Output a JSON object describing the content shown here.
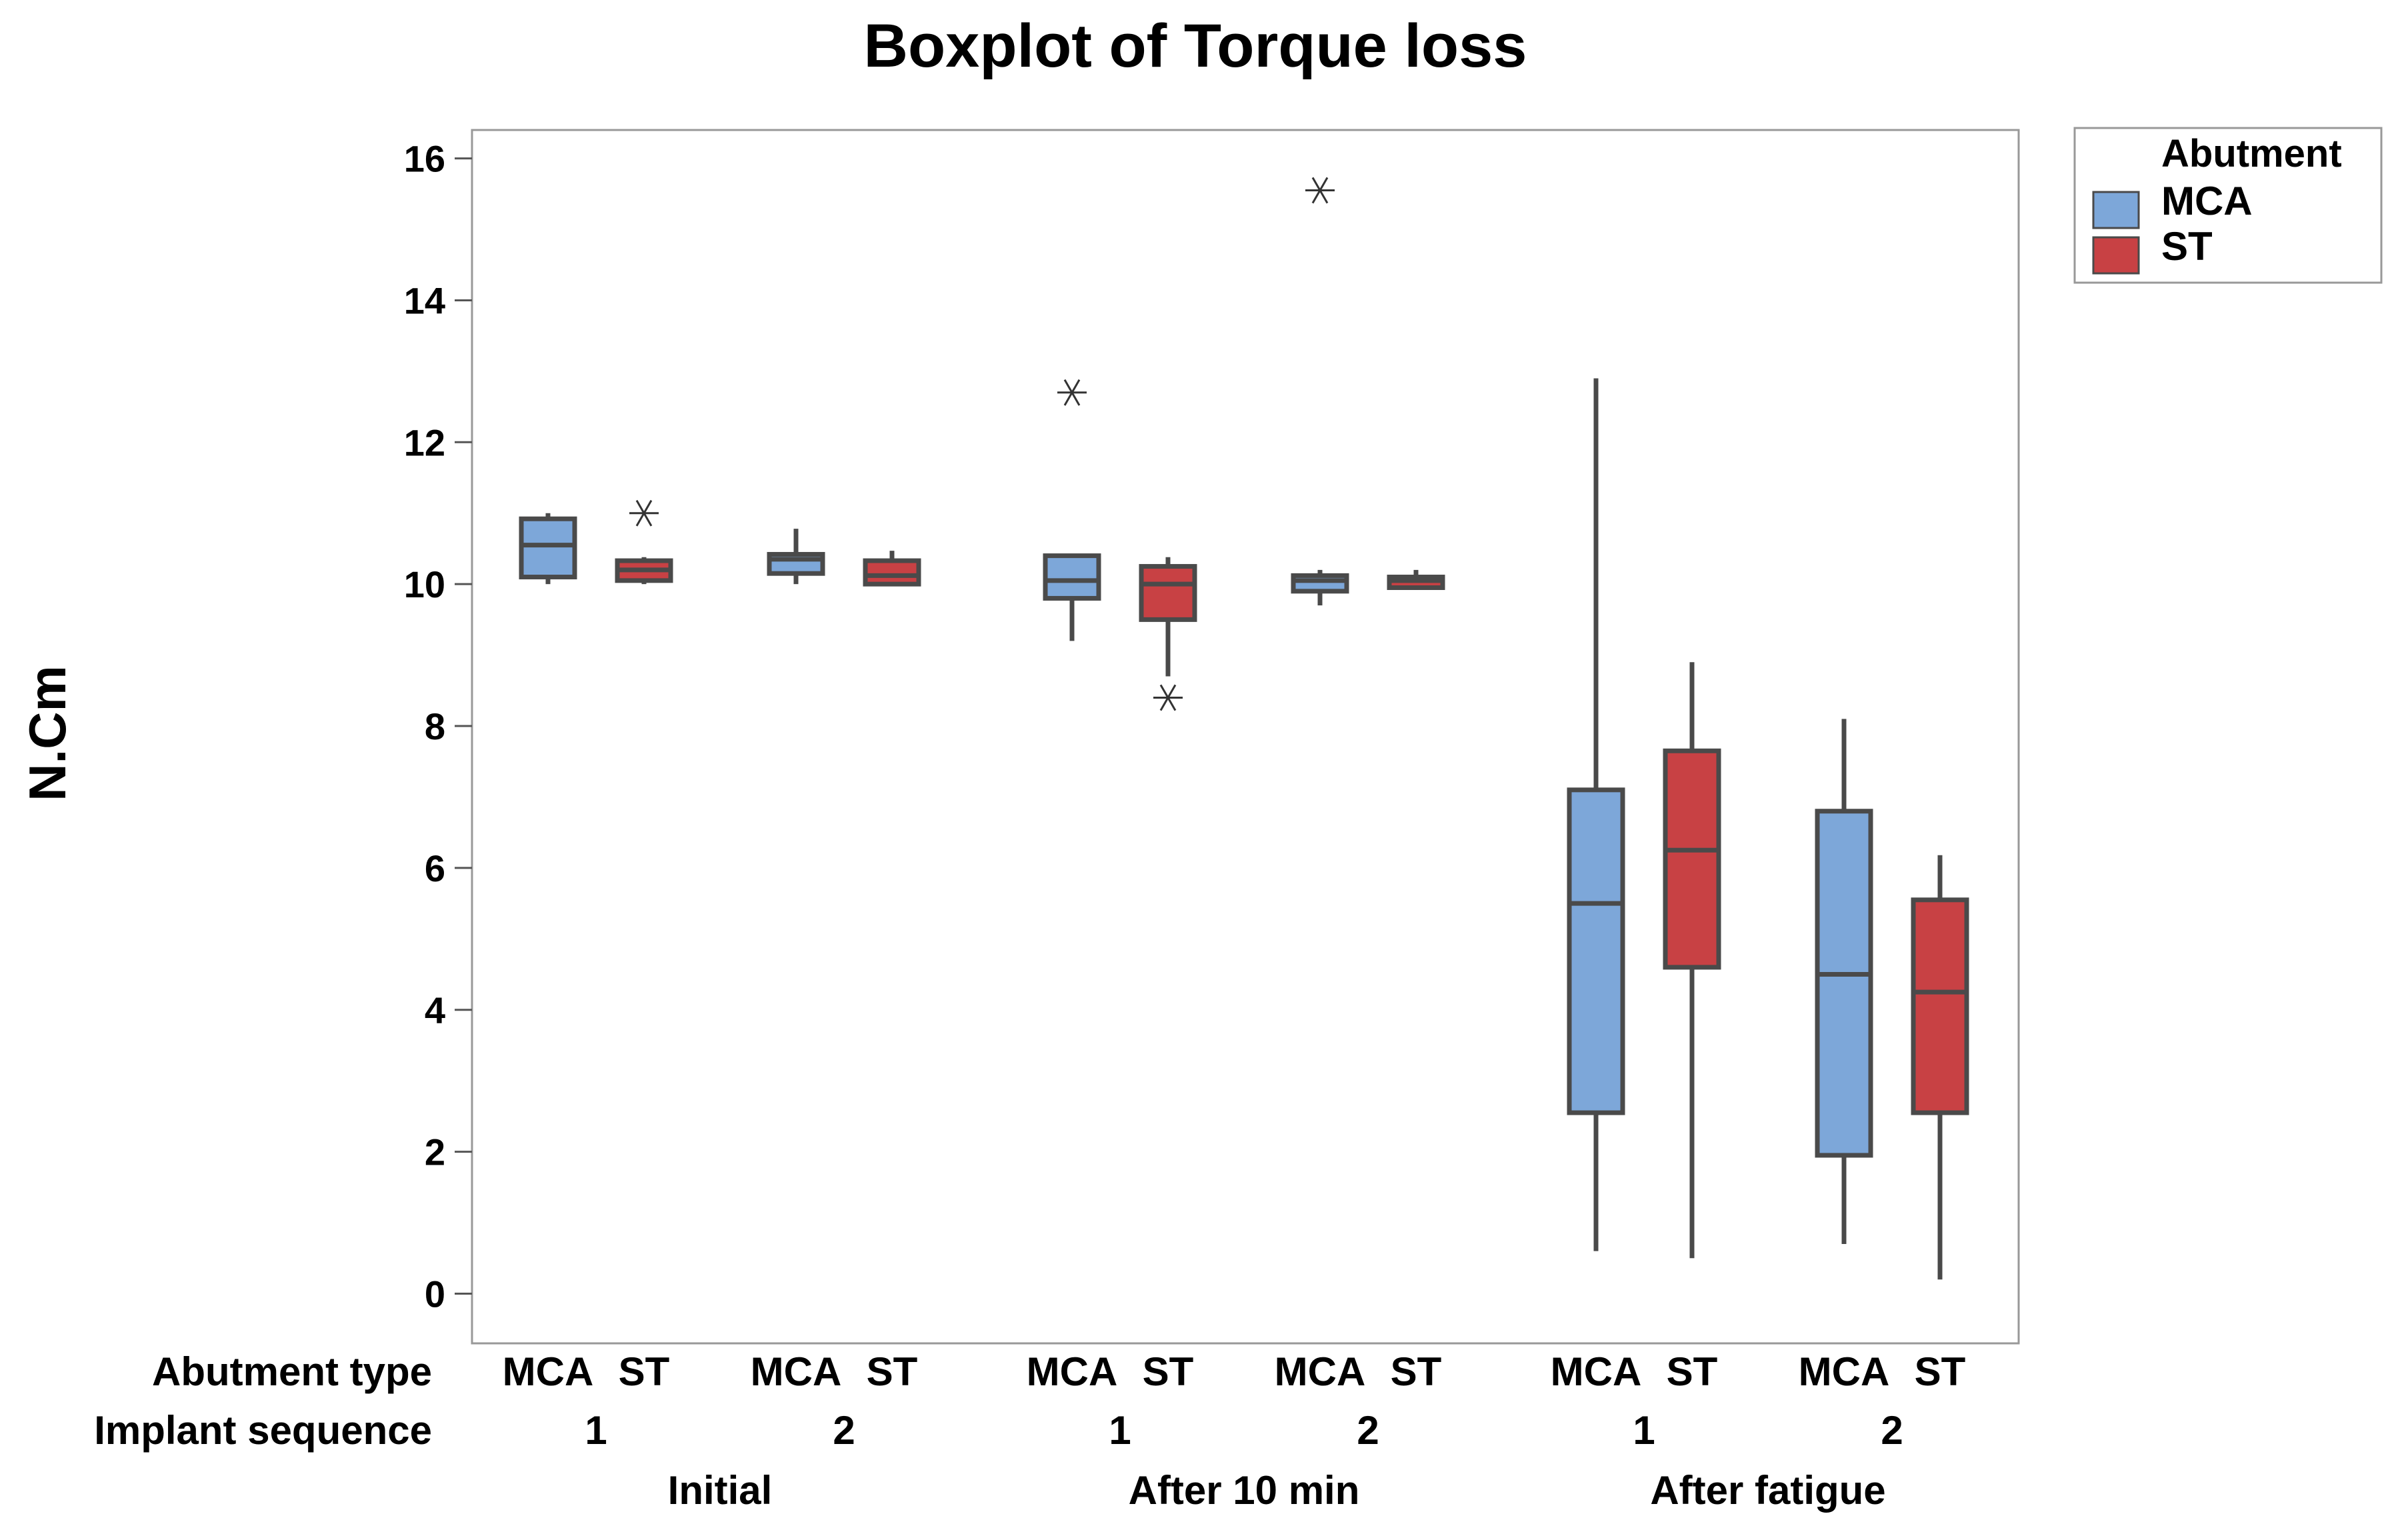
{
  "chart_data": {
    "type": "boxplot",
    "title": "Boxplot of Torque loss",
    "xlabel": "",
    "ylabel": "N.Cm",
    "ylim": [
      -0.7,
      16.4
    ],
    "yticks": [
      0,
      2,
      4,
      6,
      8,
      10,
      12,
      14,
      16
    ],
    "grid": false,
    "legend": {
      "title": "Abutment",
      "placement": "top-right",
      "entries": [
        {
          "name": "MCA",
          "color": "#7da7d9"
        },
        {
          "name": "ST",
          "color": "#c84144"
        }
      ]
    },
    "row_labels": {
      "abutment": "Abutment type",
      "implant": "Implant sequence"
    },
    "stages": [
      {
        "name": "Initial",
        "sequences": [
          "1",
          "2"
        ]
      },
      {
        "name": "After 10 min",
        "sequences": [
          "1",
          "2"
        ]
      },
      {
        "name": "After fatigue",
        "sequences": [
          "1",
          "2"
        ]
      }
    ],
    "boxes": [
      {
        "stage": "Initial",
        "sequence": "1",
        "abutment": "MCA",
        "min": 10.0,
        "q1": 10.1,
        "median": 10.55,
        "q3": 10.92,
        "max": 11.0,
        "outliers": []
      },
      {
        "stage": "Initial",
        "sequence": "1",
        "abutment": "ST",
        "min": 10.0,
        "q1": 10.05,
        "median": 10.2,
        "q3": 10.33,
        "max": 10.38,
        "outliers": [
          11.0
        ]
      },
      {
        "stage": "Initial",
        "sequence": "2",
        "abutment": "MCA",
        "min": 10.0,
        "q1": 10.15,
        "median": 10.35,
        "q3": 10.42,
        "max": 10.78,
        "outliers": []
      },
      {
        "stage": "Initial",
        "sequence": "2",
        "abutment": "ST",
        "min": 9.98,
        "q1": 10.0,
        "median": 10.12,
        "q3": 10.33,
        "max": 10.47,
        "outliers": []
      },
      {
        "stage": "After 10 min",
        "sequence": "1",
        "abutment": "MCA",
        "min": 9.2,
        "q1": 9.8,
        "median": 10.05,
        "q3": 10.4,
        "max": 10.4,
        "outliers": [
          12.7
        ]
      },
      {
        "stage": "After 10 min",
        "sequence": "1",
        "abutment": "ST",
        "min": 8.7,
        "q1": 9.5,
        "median": 10.0,
        "q3": 10.25,
        "max": 10.38,
        "outliers": [
          8.4
        ]
      },
      {
        "stage": "After 10 min",
        "sequence": "2",
        "abutment": "MCA",
        "min": 9.7,
        "q1": 9.9,
        "median": 10.05,
        "q3": 10.12,
        "max": 10.2,
        "outliers": [
          15.55
        ]
      },
      {
        "stage": "After 10 min",
        "sequence": "2",
        "abutment": "ST",
        "min": 9.92,
        "q1": 9.95,
        "median": 10.05,
        "q3": 10.1,
        "max": 10.2,
        "outliers": []
      },
      {
        "stage": "After fatigue",
        "sequence": "1",
        "abutment": "MCA",
        "min": 0.6,
        "q1": 2.55,
        "median": 5.5,
        "q3": 7.1,
        "max": 12.9,
        "outliers": []
      },
      {
        "stage": "After fatigue",
        "sequence": "1",
        "abutment": "ST",
        "min": 0.5,
        "q1": 4.6,
        "median": 6.25,
        "q3": 7.65,
        "max": 8.9,
        "outliers": []
      },
      {
        "stage": "After fatigue",
        "sequence": "2",
        "abutment": "MCA",
        "min": 0.7,
        "q1": 1.95,
        "median": 4.5,
        "q3": 6.8,
        "max": 8.1,
        "outliers": []
      },
      {
        "stage": "After fatigue",
        "sequence": "2",
        "abutment": "ST",
        "min": 0.2,
        "q1": 2.55,
        "median": 4.25,
        "q3": 5.55,
        "max": 6.18,
        "outliers": []
      }
    ]
  }
}
